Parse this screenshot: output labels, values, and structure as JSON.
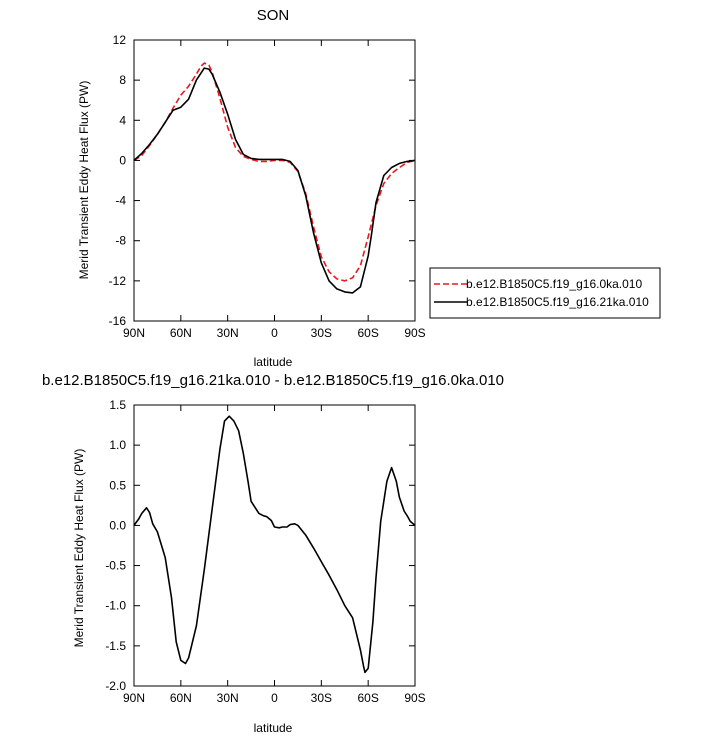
{
  "chart_data": [
    {
      "type": "line",
      "title": "SON",
      "xlabel": "latitude",
      "ylabel": "Merid Transient Eddy Heat Flux (PW)",
      "xlim": [
        90,
        -90
      ],
      "ylim": [
        -16,
        12
      ],
      "xticks": [
        {
          "v": 90,
          "label": "90N"
        },
        {
          "v": 60,
          "label": "60N"
        },
        {
          "v": 30,
          "label": "30N"
        },
        {
          "v": 0,
          "label": "0"
        },
        {
          "v": -30,
          "label": "30S"
        },
        {
          "v": -60,
          "label": "60S"
        },
        {
          "v": -90,
          "label": "90S"
        }
      ],
      "yticks": [
        {
          "v": 12,
          "label": "12"
        },
        {
          "v": 8,
          "label": "8"
        },
        {
          "v": 4,
          "label": "4"
        },
        {
          "v": 0,
          "label": "0"
        },
        {
          "v": -4,
          "label": "-4"
        },
        {
          "v": -8,
          "label": "-8"
        },
        {
          "v": -12,
          "label": "-12"
        },
        {
          "v": -16,
          "label": "-16"
        }
      ],
      "legend_position": "right",
      "series": [
        {
          "name": "b.e12.B1850C5.f19_g16.0ka.010",
          "color": "#e8191d",
          "dash": "dashed",
          "x": [
            90,
            85,
            80,
            75,
            70,
            65,
            60,
            55,
            50,
            47,
            45,
            42,
            40,
            35,
            30,
            25,
            20,
            15,
            10,
            5,
            0,
            -5,
            -10,
            -15,
            -20,
            -25,
            -30,
            -35,
            -40,
            -45,
            -50,
            -55,
            -60,
            -65,
            -70,
            -75,
            -80,
            -85,
            -90
          ],
          "y": [
            0,
            0.5,
            1.5,
            2.6,
            3.8,
            5.2,
            6.5,
            7.4,
            8.6,
            9.4,
            9.7,
            9.5,
            8.8,
            6.2,
            3.3,
            1.3,
            0.4,
            0.1,
            -0.1,
            -0.1,
            0,
            0,
            -0.2,
            -1.1,
            -3.3,
            -6.6,
            -9.6,
            -11.1,
            -11.8,
            -12.0,
            -11.7,
            -10.5,
            -7.6,
            -4.5,
            -2.3,
            -1.3,
            -0.7,
            -0.2,
            0
          ]
        },
        {
          "name": "b.e12.B1850C5.f19_g16.21ka.010",
          "color": "#000000",
          "dash": "solid",
          "x": [
            90,
            85,
            80,
            75,
            70,
            65,
            60,
            55,
            50,
            45,
            42,
            40,
            35,
            30,
            25,
            20,
            15,
            10,
            5,
            0,
            -5,
            -10,
            -15,
            -20,
            -25,
            -30,
            -35,
            -40,
            -45,
            -50,
            -55,
            -60,
            -62,
            -65,
            -70,
            -75,
            -80,
            -85,
            -90
          ],
          "y": [
            0,
            0.7,
            1.6,
            2.6,
            3.8,
            5.0,
            5.3,
            6.1,
            8.0,
            9.2,
            9.1,
            8.6,
            6.8,
            4.6,
            2.1,
            0.6,
            0.2,
            0.1,
            0.1,
            0.1,
            0.1,
            -0.1,
            -1.0,
            -3.5,
            -7.2,
            -10.2,
            -12.0,
            -12.8,
            -13.1,
            -13.2,
            -12.6,
            -9.5,
            -7.5,
            -4.2,
            -1.5,
            -0.7,
            -0.3,
            -0.1,
            0
          ]
        }
      ]
    },
    {
      "type": "line",
      "title": "b.e12.B1850C5.f19_g16.21ka.010 - b.e12.B1850C5.f19_g16.0ka.010",
      "xlabel": "latitude",
      "ylabel": "Merid Transient Eddy Heat Flux (PW)",
      "xlim": [
        90,
        -90
      ],
      "ylim": [
        -2.0,
        1.5
      ],
      "xticks": [
        {
          "v": 90,
          "label": "90N"
        },
        {
          "v": 60,
          "label": "60N"
        },
        {
          "v": 30,
          "label": "30N"
        },
        {
          "v": 0,
          "label": "0"
        },
        {
          "v": -30,
          "label": "30S"
        },
        {
          "v": -60,
          "label": "60S"
        },
        {
          "v": -90,
          "label": "90S"
        }
      ],
      "yticks": [
        {
          "v": 1.5,
          "label": "1.5"
        },
        {
          "v": 1.0,
          "label": "1.0"
        },
        {
          "v": 0.5,
          "label": "0.5"
        },
        {
          "v": 0.0,
          "label": "0.0"
        },
        {
          "v": -0.5,
          "label": "-0.5"
        },
        {
          "v": -1.0,
          "label": "-1.0"
        },
        {
          "v": -1.5,
          "label": "-1.5"
        },
        {
          "v": -2.0,
          "label": "-2.0"
        }
      ],
      "series": [
        {
          "color": "#000000",
          "dash": "solid",
          "x": [
            90,
            87,
            85,
            82,
            80,
            78,
            75,
            70,
            66,
            63,
            60,
            57,
            55,
            50,
            45,
            40,
            35,
            32,
            29,
            26,
            23,
            20,
            17,
            15,
            10,
            7,
            5,
            2,
            0,
            -3,
            -5,
            -8,
            -10,
            -13,
            -15,
            -20,
            -25,
            -30,
            -35,
            -40,
            -45,
            -50,
            -55,
            -57,
            -58,
            -60,
            -63,
            -65,
            -68,
            -72,
            -75,
            -78,
            -80,
            -83,
            -85,
            -87,
            -90
          ],
          "y": [
            0,
            0.08,
            0.15,
            0.22,
            0.16,
            0.02,
            -0.08,
            -0.4,
            -0.9,
            -1.45,
            -1.68,
            -1.72,
            -1.65,
            -1.25,
            -0.55,
            0.2,
            0.95,
            1.3,
            1.36,
            1.3,
            1.18,
            0.9,
            0.55,
            0.3,
            0.15,
            0.12,
            0.11,
            0.06,
            -0.02,
            -0.03,
            -0.02,
            -0.02,
            0.01,
            0.02,
            0.0,
            -0.12,
            -0.28,
            -0.45,
            -0.62,
            -0.8,
            -1.0,
            -1.15,
            -1.55,
            -1.75,
            -1.83,
            -1.78,
            -1.2,
            -0.65,
            0.05,
            0.55,
            0.72,
            0.55,
            0.35,
            0.18,
            0.12,
            0.05,
            0
          ]
        }
      ]
    }
  ]
}
